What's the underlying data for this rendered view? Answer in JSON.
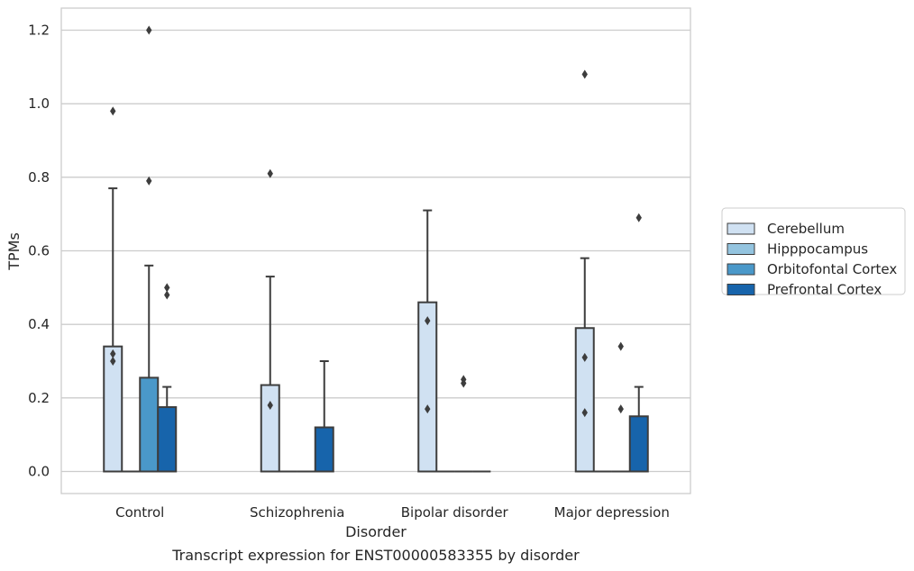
{
  "chart_data": {
    "type": "box",
    "xlabel": "Disorder",
    "ylabel": "TPMs",
    "caption": "Transcript expression for ENST00000583355 by disorder",
    "categories": [
      "Control",
      "Schizophrenia",
      "Bipolar disorder",
      "Major depression"
    ],
    "ylim": [
      -0.06,
      1.26
    ],
    "yticks": [
      "0.0",
      "0.2",
      "0.4",
      "0.6",
      "0.8",
      "1.0",
      "1.2"
    ],
    "grid": true,
    "legend_position": "right",
    "series": [
      {
        "name": "Cerebellum",
        "color": "#d0e1f2",
        "boxes": [
          {
            "q1": 0,
            "median": 0,
            "q3": 0.34,
            "whisker_low": 0,
            "whisker_high": 0.77,
            "outliers": [
              0.98,
              0.32,
              0.3
            ]
          },
          {
            "q1": 0,
            "median": 0,
            "q3": 0.235,
            "whisker_low": 0,
            "whisker_high": 0.53,
            "outliers": [
              0.81,
              0.18
            ]
          },
          {
            "q1": 0,
            "median": 0,
            "q3": 0.46,
            "whisker_low": 0,
            "whisker_high": 0.71,
            "outliers": [
              0.41,
              0.17
            ]
          },
          {
            "q1": 0,
            "median": 0,
            "q3": 0.39,
            "whisker_low": 0,
            "whisker_high": 0.58,
            "outliers": [
              1.08,
              0.31,
              0.16
            ]
          }
        ]
      },
      {
        "name": "Hipppocampus",
        "color": "#94c4df",
        "boxes": [
          {
            "q1": 0,
            "median": 0,
            "q3": 0,
            "whisker_low": 0,
            "whisker_high": 0,
            "outliers": []
          },
          {
            "q1": 0,
            "median": 0,
            "q3": 0,
            "whisker_low": 0,
            "whisker_high": 0,
            "outliers": []
          },
          {
            "q1": 0,
            "median": 0,
            "q3": 0,
            "whisker_low": 0,
            "whisker_high": 0,
            "outliers": []
          },
          {
            "q1": 0,
            "median": 0,
            "q3": 0,
            "whisker_low": 0,
            "whisker_high": 0,
            "outliers": []
          }
        ]
      },
      {
        "name": "Orbitofontal Cortex",
        "color": "#4a98c9",
        "boxes": [
          {
            "q1": 0,
            "median": 0,
            "q3": 0.255,
            "whisker_low": 0,
            "whisker_high": 0.56,
            "outliers": [
              1.2,
              0.79
            ]
          },
          {
            "q1": 0,
            "median": 0,
            "q3": 0,
            "whisker_low": 0,
            "whisker_high": 0,
            "outliers": []
          },
          {
            "q1": 0,
            "median": 0,
            "q3": 0,
            "whisker_low": 0,
            "whisker_high": 0,
            "outliers": [
              0.25,
              0.24
            ]
          },
          {
            "q1": 0,
            "median": 0,
            "q3": 0,
            "whisker_low": 0,
            "whisker_high": 0,
            "outliers": [
              0.34,
              0.17
            ]
          }
        ]
      },
      {
        "name": "Prefrontal Cortex",
        "color": "#1764ab",
        "boxes": [
          {
            "q1": 0,
            "median": 0,
            "q3": 0.175,
            "whisker_low": 0,
            "whisker_high": 0.23,
            "outliers": [
              0.5,
              0.48
            ]
          },
          {
            "q1": 0,
            "median": 0,
            "q3": 0.12,
            "whisker_low": 0,
            "whisker_high": 0.3,
            "outliers": []
          },
          {
            "q1": 0,
            "median": 0,
            "q3": 0,
            "whisker_low": 0,
            "whisker_high": 0,
            "outliers": []
          },
          {
            "q1": 0,
            "median": 0,
            "q3": 0.15,
            "whisker_low": 0,
            "whisker_high": 0.23,
            "outliers": [
              0.69
            ]
          }
        ]
      }
    ]
  }
}
